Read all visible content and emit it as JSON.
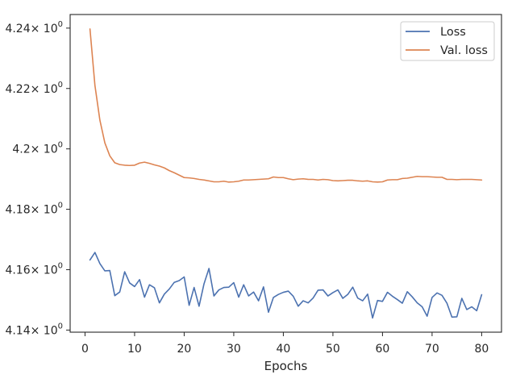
{
  "chart_data": {
    "type": "line",
    "xlabel": "Epochs",
    "ylabel": "",
    "xlim": [
      -3,
      84
    ],
    "ylim": [
      4.1393,
      4.2445
    ],
    "x_ticks": [
      0,
      10,
      20,
      30,
      40,
      50,
      60,
      70,
      80
    ],
    "x_tick_labels": [
      "0",
      "10",
      "20",
      "30",
      "40",
      "50",
      "60",
      "70",
      "80"
    ],
    "y_ticks": [
      4.14,
      4.16,
      4.18,
      4.2,
      4.22,
      4.24
    ],
    "y_tick_labels": [
      "4.14",
      "4.16",
      "4.18",
      "4.2",
      "4.22",
      "4.24"
    ],
    "y_tick_suffix_base": "× 10",
    "y_tick_suffix_exp": "0",
    "grid": false,
    "legend_position": "top-right",
    "colors": {
      "axis": "#262626",
      "background": "#ffffff"
    },
    "x": [
      1,
      2,
      3,
      4,
      5,
      6,
      7,
      8,
      9,
      10,
      11,
      12,
      13,
      14,
      15,
      16,
      17,
      18,
      19,
      20,
      21,
      22,
      23,
      24,
      25,
      26,
      27,
      28,
      29,
      30,
      31,
      32,
      33,
      34,
      35,
      36,
      37,
      38,
      39,
      40,
      41,
      42,
      43,
      44,
      45,
      46,
      47,
      48,
      49,
      50,
      51,
      52,
      53,
      54,
      55,
      56,
      57,
      58,
      59,
      60,
      61,
      62,
      63,
      64,
      65,
      66,
      67,
      68,
      69,
      70,
      71,
      72,
      73,
      74,
      75,
      76,
      77,
      78,
      79,
      80
    ],
    "series": [
      {
        "name": "Loss",
        "color": "#4c72b0",
        "values": [
          4.1632,
          4.1657,
          4.162,
          4.1596,
          4.1597,
          4.1514,
          4.1526,
          4.1593,
          4.1556,
          4.1544,
          4.1567,
          4.1509,
          4.155,
          4.154,
          4.149,
          4.1519,
          4.1536,
          4.1558,
          4.1564,
          4.1576,
          4.1482,
          4.1541,
          4.1479,
          4.1553,
          4.1604,
          4.1513,
          4.1533,
          4.1541,
          4.1542,
          4.1557,
          4.1509,
          4.155,
          4.1513,
          4.1526,
          4.1497,
          4.1543,
          4.1459,
          4.1508,
          4.1518,
          4.1525,
          4.1529,
          4.1512,
          4.1479,
          4.1497,
          4.149,
          4.1506,
          4.1532,
          4.1533,
          4.1513,
          4.1524,
          4.1533,
          4.1505,
          4.1518,
          4.1542,
          4.1506,
          4.1497,
          4.1519,
          4.144,
          4.1498,
          4.1495,
          4.1525,
          4.1512,
          4.1501,
          4.1489,
          4.1527,
          4.151,
          4.149,
          4.1477,
          4.1446,
          4.1508,
          4.1523,
          4.1515,
          4.1489,
          4.1443,
          4.1444,
          4.1505,
          4.1468,
          4.1477,
          4.1464,
          4.1517
        ]
      },
      {
        "name": "Val. loss",
        "color": "#dd8452",
        "values": [
          4.2397,
          4.221,
          4.2095,
          4.202,
          4.1977,
          4.1954,
          4.1948,
          4.1946,
          4.1945,
          4.1946,
          4.1953,
          4.1956,
          4.1952,
          4.1947,
          4.1943,
          4.1937,
          4.1928,
          4.1921,
          4.1913,
          4.1905,
          4.1904,
          4.1902,
          4.1899,
          4.1897,
          4.1894,
          4.1891,
          4.1891,
          4.1893,
          4.189,
          4.1891,
          4.1893,
          4.1897,
          4.1897,
          4.1898,
          4.1899,
          4.19,
          4.1901,
          4.1907,
          4.1905,
          4.1905,
          4.1901,
          4.1898,
          4.19,
          4.1901,
          4.1899,
          4.1899,
          4.1897,
          4.1899,
          4.1898,
          4.1895,
          4.1894,
          4.1895,
          4.1896,
          4.1896,
          4.1894,
          4.1893,
          4.1894,
          4.1891,
          4.189,
          4.1891,
          4.1897,
          4.1898,
          4.1898,
          4.1902,
          4.1903,
          4.1906,
          4.1909,
          4.1908,
          4.1908,
          4.1907,
          4.1906,
          4.1906,
          4.1899,
          4.1899,
          4.1898,
          4.1899,
          4.1899,
          4.1899,
          4.1898,
          4.1897
        ]
      }
    ]
  }
}
